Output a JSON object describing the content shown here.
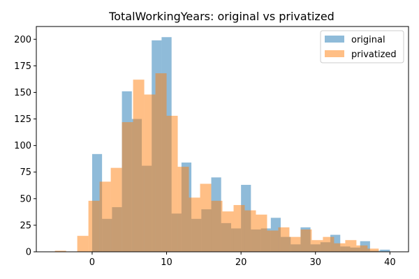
{
  "chart_data": {
    "type": "histogram",
    "title": "TotalWorkingYears: original vs privatized",
    "xlabel": "",
    "ylabel": "",
    "xlim": [
      -7.5,
      42.5
    ],
    "ylim": [
      0,
      212
    ],
    "x_ticks": [
      0,
      10,
      20,
      30,
      40
    ],
    "y_ticks": [
      0,
      25,
      50,
      75,
      100,
      125,
      150,
      175,
      200
    ],
    "legend_position": "top-right",
    "series": [
      {
        "name": "original",
        "color": "#1f77b4",
        "opacity": 0.5,
        "bins": [
          {
            "x0": 0,
            "x1": 1.33,
            "value": 92
          },
          {
            "x0": 1.33,
            "x1": 2.67,
            "value": 31
          },
          {
            "x0": 2.67,
            "x1": 4.0,
            "value": 42
          },
          {
            "x0": 4.0,
            "x1": 5.33,
            "value": 151
          },
          {
            "x0": 5.33,
            "x1": 6.67,
            "value": 125
          },
          {
            "x0": 6.67,
            "x1": 8.0,
            "value": 81
          },
          {
            "x0": 8.0,
            "x1": 9.33,
            "value": 199
          },
          {
            "x0": 9.33,
            "x1": 10.67,
            "value": 202
          },
          {
            "x0": 10.67,
            "x1": 12.0,
            "value": 36
          },
          {
            "x0": 12.0,
            "x1": 13.33,
            "value": 84
          },
          {
            "x0": 13.33,
            "x1": 14.67,
            "value": 31
          },
          {
            "x0": 14.67,
            "x1": 16.0,
            "value": 40
          },
          {
            "x0": 16.0,
            "x1": 17.33,
            "value": 70
          },
          {
            "x0": 17.33,
            "x1": 18.67,
            "value": 27
          },
          {
            "x0": 18.67,
            "x1": 20.0,
            "value": 22
          },
          {
            "x0": 20.0,
            "x1": 21.33,
            "value": 63
          },
          {
            "x0": 21.33,
            "x1": 22.67,
            "value": 21
          },
          {
            "x0": 22.67,
            "x1": 24.0,
            "value": 22
          },
          {
            "x0": 24.0,
            "x1": 25.33,
            "value": 32
          },
          {
            "x0": 25.33,
            "x1": 26.67,
            "value": 14
          },
          {
            "x0": 26.67,
            "x1": 28.0,
            "value": 7
          },
          {
            "x0": 28.0,
            "x1": 29.33,
            "value": 23
          },
          {
            "x0": 29.33,
            "x1": 30.67,
            "value": 7
          },
          {
            "x0": 30.67,
            "x1": 32.0,
            "value": 9
          },
          {
            "x0": 32.0,
            "x1": 33.33,
            "value": 16
          },
          {
            "x0": 33.33,
            "x1": 34.67,
            "value": 5
          },
          {
            "x0": 34.67,
            "x1": 36.0,
            "value": 4
          },
          {
            "x0": 36.0,
            "x1": 37.33,
            "value": 10
          },
          {
            "x0": 37.33,
            "x1": 38.67,
            "value": 1
          },
          {
            "x0": 38.67,
            "x1": 40.0,
            "value": 2
          }
        ]
      },
      {
        "name": "privatized",
        "color": "#ff7f0e",
        "opacity": 0.5,
        "bins": [
          {
            "x0": -5.0,
            "x1": -3.5,
            "value": 1
          },
          {
            "x0": -2.0,
            "x1": -0.5,
            "value": 15
          },
          {
            "x0": -0.5,
            "x1": 1.0,
            "value": 48
          },
          {
            "x0": 1.0,
            "x1": 2.5,
            "value": 66
          },
          {
            "x0": 2.5,
            "x1": 4.0,
            "value": 79
          },
          {
            "x0": 4.0,
            "x1": 5.5,
            "value": 122
          },
          {
            "x0": 5.5,
            "x1": 7.0,
            "value": 162
          },
          {
            "x0": 7.0,
            "x1": 8.5,
            "value": 148
          },
          {
            "x0": 8.5,
            "x1": 10.0,
            "value": 168
          },
          {
            "x0": 10.0,
            "x1": 11.5,
            "value": 128
          },
          {
            "x0": 11.5,
            "x1": 13.0,
            "value": 80
          },
          {
            "x0": 13.0,
            "x1": 14.5,
            "value": 51
          },
          {
            "x0": 14.5,
            "x1": 16.0,
            "value": 64
          },
          {
            "x0": 16.0,
            "x1": 17.5,
            "value": 48
          },
          {
            "x0": 17.5,
            "x1": 19.0,
            "value": 38
          },
          {
            "x0": 19.0,
            "x1": 20.5,
            "value": 44
          },
          {
            "x0": 20.5,
            "x1": 22.0,
            "value": 39
          },
          {
            "x0": 22.0,
            "x1": 23.5,
            "value": 35
          },
          {
            "x0": 23.5,
            "x1": 25.0,
            "value": 20
          },
          {
            "x0": 25.0,
            "x1": 26.5,
            "value": 23
          },
          {
            "x0": 26.5,
            "x1": 28.0,
            "value": 14
          },
          {
            "x0": 28.0,
            "x1": 29.5,
            "value": 21
          },
          {
            "x0": 29.5,
            "x1": 31.0,
            "value": 11
          },
          {
            "x0": 31.0,
            "x1": 32.5,
            "value": 14
          },
          {
            "x0": 32.5,
            "x1": 34.0,
            "value": 8
          },
          {
            "x0": 34.0,
            "x1": 35.5,
            "value": 11
          },
          {
            "x0": 35.5,
            "x1": 37.0,
            "value": 6
          },
          {
            "x0": 37.0,
            "x1": 38.5,
            "value": 3
          }
        ]
      }
    ]
  }
}
